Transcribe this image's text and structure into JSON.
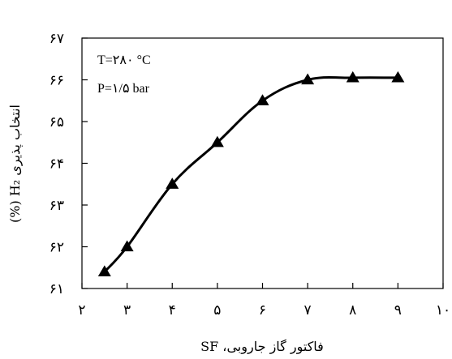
{
  "chart_data": {
    "type": "line",
    "x": [
      2.5,
      3,
      4,
      5,
      6,
      7,
      8,
      9
    ],
    "series": [
      {
        "values": [
          61.4,
          62.0,
          63.5,
          64.5,
          65.5,
          66.0,
          66.05,
          66.05
        ]
      }
    ],
    "xlim": [
      2,
      10
    ],
    "ylim": [
      61,
      67
    ],
    "x_ticks": [
      2,
      3,
      4,
      5,
      6,
      7,
      8,
      9,
      10
    ],
    "y_ticks": [
      61,
      62,
      63,
      64,
      65,
      66,
      67
    ],
    "x_tick_labels": [
      "۲",
      "۳",
      "۴",
      "۵",
      "۶",
      "۷",
      "۸",
      "۹",
      "۱۰"
    ],
    "y_tick_labels": [
      "۶۱",
      "۶۲",
      "۶۳",
      "۶۴",
      "۶۵",
      "۶۶",
      "۶۷"
    ],
    "xlabel": "فاکتور گاز جاروبی، SF",
    "ylabel": "انتخاب پذیری H₂ (%)",
    "annotations": [
      "T=۲۸۰ °C",
      "P=۱/۵ bar"
    ],
    "marker": "triangle",
    "line_color": "#000000",
    "marker_color": "#000000",
    "grid": false,
    "smooth": true
  }
}
